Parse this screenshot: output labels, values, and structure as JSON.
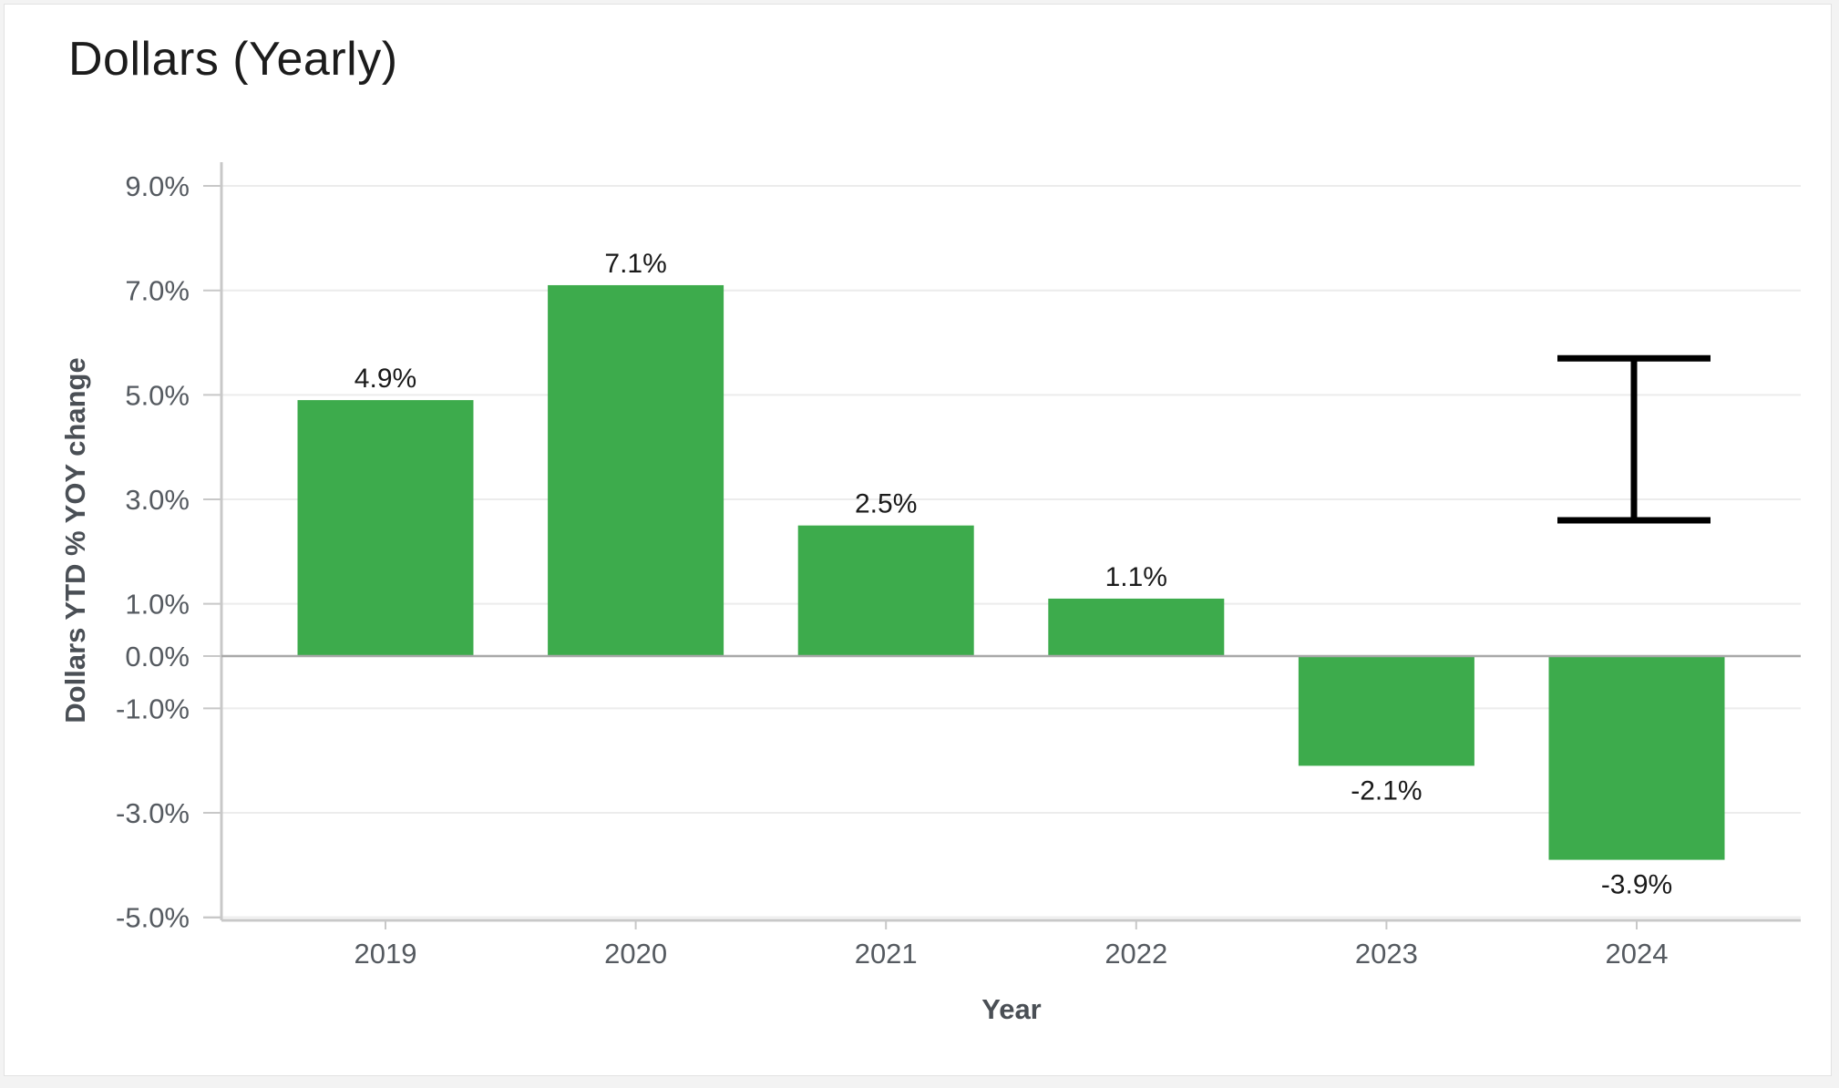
{
  "chart_data": {
    "type": "bar",
    "title": "Dollars (Yearly)",
    "xlabel": "Year",
    "ylabel": "Dollars YTD % YOY change",
    "categories": [
      "2019",
      "2020",
      "2021",
      "2022",
      "2023",
      "2024"
    ],
    "values": [
      4.9,
      7.1,
      2.5,
      1.1,
      -2.1,
      -3.9
    ],
    "value_labels": [
      "4.9%",
      "7.1%",
      "2.5%",
      "1.1%",
      "-2.1%",
      "-3.9%"
    ],
    "yticks": [
      9.0,
      7.0,
      5.0,
      3.0,
      1.0,
      0.0,
      -1.0,
      -3.0,
      -5.0
    ],
    "ytick_labels": [
      "9.0%",
      "7.0%",
      "5.0%",
      "3.0%",
      "1.0%",
      "0.0%",
      "-1.0%",
      "-3.0%",
      "-5.0%"
    ],
    "ylim": [
      -5.0,
      9.0
    ],
    "error_bar": {
      "category": "2024",
      "low": 2.6,
      "high": 5.7
    },
    "colors": {
      "bar": "#3dab4c",
      "error_bar": "#000000",
      "grid": "#ececec",
      "zero_line": "#a8a8a8",
      "axis": "#c8c8c8"
    },
    "grid": true
  }
}
